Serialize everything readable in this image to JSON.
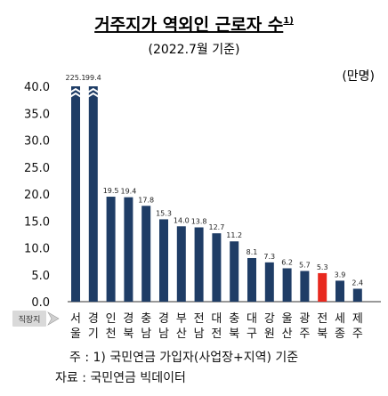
{
  "chart_data": {
    "type": "bar",
    "title": "거주지가 역외인 근로자 수",
    "title_note": "1)",
    "subtitle": "(2022.7월 기준)",
    "unit": "(만명)",
    "ylim": [
      0,
      40
    ],
    "yticks": [
      "0.0",
      "5.0",
      "10.0",
      "15.0",
      "20.0",
      "25.0",
      "30.0",
      "35.0",
      "40.0"
    ],
    "x_axis_caption": "직장지",
    "categories": [
      [
        "서",
        "울"
      ],
      [
        "경",
        "기"
      ],
      [
        "인",
        "천"
      ],
      [
        "경",
        "북"
      ],
      [
        "충",
        "남"
      ],
      [
        "경",
        "남"
      ],
      [
        "부",
        "산"
      ],
      [
        "전",
        "남"
      ],
      [
        "대",
        "전"
      ],
      [
        "충",
        "북"
      ],
      [
        "대",
        "구"
      ],
      [
        "강",
        "원"
      ],
      [
        "울",
        "산"
      ],
      [
        "광",
        "주"
      ],
      [
        "전",
        "북"
      ],
      [
        "세",
        "종"
      ],
      [
        "제",
        "주"
      ]
    ],
    "values": [
      225.1,
      99.4,
      19.5,
      19.4,
      17.8,
      15.3,
      14.0,
      13.8,
      12.7,
      11.2,
      8.1,
      7.3,
      6.2,
      5.7,
      5.3,
      3.9,
      2.4
    ],
    "value_labels": [
      "225.1",
      "99.4",
      "19.5",
      "19.4",
      "17.8",
      "15.3",
      "14.0",
      "13.8",
      "12.7",
      "11.2",
      "8.1",
      "7.3",
      "6.2",
      "5.7",
      "5.3",
      "3.9",
      "2.4"
    ],
    "bar_color": "#1f3d66",
    "highlight_color": "#e8281e",
    "highlight_index": 14,
    "axis_break": true,
    "grid": false,
    "footnote": "주 : 1) 국민연금 가입자(사업장+지역) 기준",
    "source": "자료 : 국민연금 빅데이터"
  }
}
